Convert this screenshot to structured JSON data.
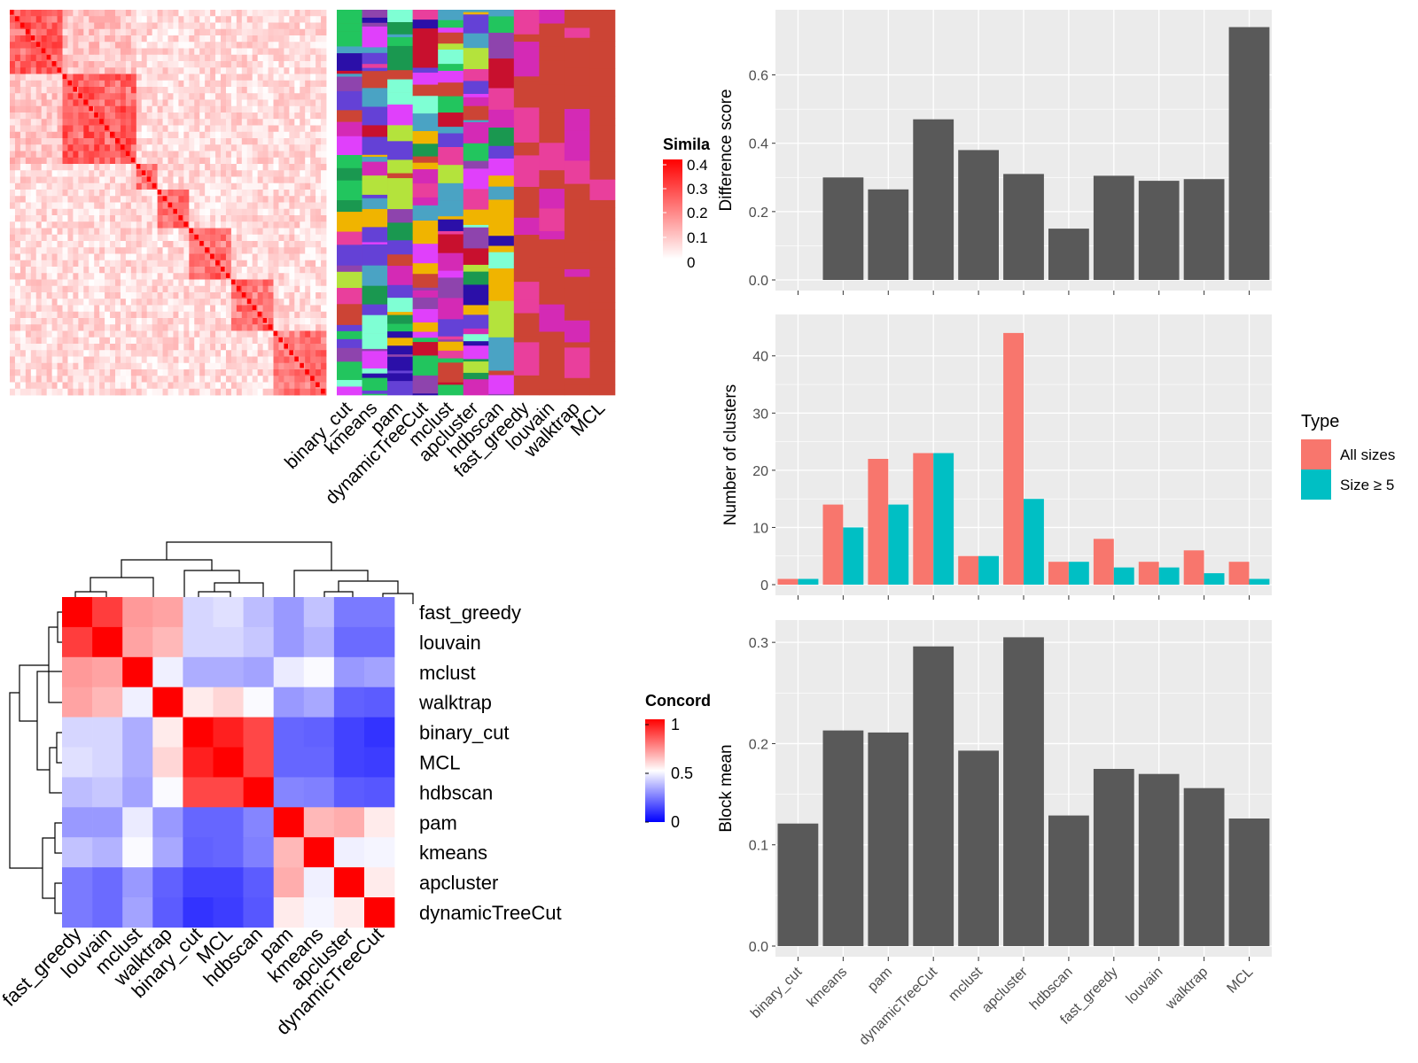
{
  "colors": {
    "bar": "#595959",
    "panel_bg": "#ebebeb",
    "grid": "#ffffff",
    "all_sizes": "#F8766D",
    "size_ge5": "#00BFC4"
  },
  "similarity_heatmap": {
    "legend_title": "Simila",
    "legend_ticks": [
      "0.4",
      "0.3",
      "0.2",
      "0.1",
      "0"
    ],
    "method_columns": [
      "binary_cut",
      "kmeans",
      "pam",
      "dynamicTreeCut",
      "mclust",
      "apcluster",
      "hdbscan",
      "fast_greedy",
      "louvain",
      "walktrap",
      "MCL"
    ]
  },
  "concordance_heatmap": {
    "legend_title": "Concord",
    "legend_ticks": [
      "1",
      "0.5",
      "0"
    ],
    "rows": [
      "fast_greedy",
      "louvain",
      "mclust",
      "walktrap",
      "binary_cut",
      "MCL",
      "hdbscan",
      "pam",
      "kmeans",
      "apcluster",
      "dynamicTreeCut"
    ],
    "cols": [
      "fast_greedy",
      "louvain",
      "mclust",
      "walktrap",
      "binary_cut",
      "MCL",
      "hdbscan",
      "pam",
      "kmeans",
      "apcluster",
      "dynamicTreeCut"
    ]
  },
  "chart_data": [
    {
      "type": "bar",
      "ylabel": "Difference score",
      "categories": [
        "binary_cut",
        "kmeans",
        "pam",
        "dynamicTreeCut",
        "mclust",
        "apcluster",
        "hdbscan",
        "fast_greedy",
        "louvain",
        "walktrap",
        "MCL"
      ],
      "values": [
        0.0,
        0.3,
        0.265,
        0.47,
        0.38,
        0.31,
        0.15,
        0.305,
        0.29,
        0.295,
        0.74
      ],
      "ylim": [
        0,
        0.77
      ],
      "yticks": [
        "0.0",
        "0.2",
        "0.4",
        "0.6"
      ],
      "ytick_values": [
        0,
        0.2,
        0.4,
        0.6
      ]
    },
    {
      "type": "bar",
      "ylabel": "Number of clusters",
      "categories": [
        "binary_cut",
        "kmeans",
        "pam",
        "dynamicTreeCut",
        "mclust",
        "apcluster",
        "hdbscan",
        "fast_greedy",
        "louvain",
        "walktrap",
        "MCL"
      ],
      "series": [
        {
          "name": "All sizes",
          "values": [
            1,
            14,
            22,
            23,
            5,
            44,
            4,
            8,
            4,
            6,
            4
          ]
        },
        {
          "name": "Size ≥ 5",
          "values": [
            1,
            10,
            14,
            23,
            5,
            15,
            4,
            3,
            3,
            2,
            1
          ]
        }
      ],
      "legend_title": "Type",
      "legend_position": "right",
      "ylim": [
        0,
        46
      ],
      "yticks": [
        "0",
        "10",
        "20",
        "30",
        "40"
      ],
      "ytick_values": [
        0,
        10,
        20,
        30,
        40
      ]
    },
    {
      "type": "bar",
      "ylabel": "Block mean",
      "categories": [
        "binary_cut",
        "kmeans",
        "pam",
        "dynamicTreeCut",
        "mclust",
        "apcluster",
        "hdbscan",
        "fast_greedy",
        "louvain",
        "walktrap",
        "MCL"
      ],
      "values": [
        0.121,
        0.213,
        0.211,
        0.296,
        0.193,
        0.305,
        0.129,
        0.175,
        0.17,
        0.156,
        0.126
      ],
      "ylim": [
        0,
        0.315
      ],
      "yticks": [
        "0.0",
        "0.1",
        "0.2",
        "0.3"
      ],
      "ytick_values": [
        0,
        0.1,
        0.2,
        0.3
      ]
    }
  ]
}
